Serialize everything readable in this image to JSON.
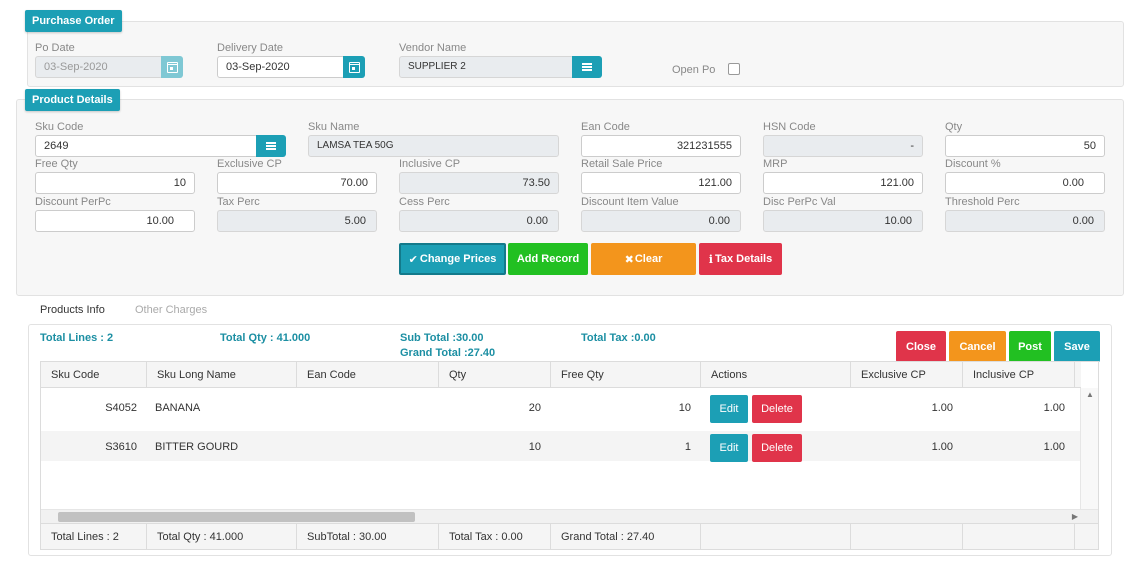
{
  "purchase_order": {
    "title": "Purchase Order",
    "po_date_label": "Po Date",
    "po_date": "03-Sep-2020",
    "delivery_date_label": "Delivery Date",
    "delivery_date": "03-Sep-2020",
    "vendor_label": "Vendor Name",
    "vendor": "SUPPLIER 2",
    "open_po_label": "Open Po"
  },
  "product_details": {
    "title": "Product Details",
    "fields": {
      "sku_code": {
        "label": "Sku Code",
        "value": "2649"
      },
      "sku_name": {
        "label": "Sku Name",
        "value": "LAMSA TEA 50G"
      },
      "ean_code": {
        "label": "Ean Code",
        "value": "321231555"
      },
      "hsn_code": {
        "label": "HSN Code",
        "value": "-"
      },
      "qty": {
        "label": "Qty",
        "value": "50"
      },
      "free_qty": {
        "label": "Free Qty",
        "value": "10"
      },
      "exclusive_cp": {
        "label": "Exclusive CP",
        "value": "70.00"
      },
      "inclusive_cp": {
        "label": "Inclusive CP",
        "value": "73.50"
      },
      "retail_sale_price": {
        "label": "Retail Sale Price",
        "value": "121.00"
      },
      "mrp": {
        "label": "MRP",
        "value": "121.00"
      },
      "discount_pct": {
        "label": "Discount %",
        "value": "0.00"
      },
      "discount_perpc": {
        "label": "Discount PerPc",
        "value": "10.00"
      },
      "tax_perc": {
        "label": "Tax Perc",
        "value": "5.00"
      },
      "cess_perc": {
        "label": "Cess Perc",
        "value": "0.00"
      },
      "discount_item_value": {
        "label": "Discount Item Value",
        "value": "0.00"
      },
      "disc_perpc_val": {
        "label": "Disc PerPc Val",
        "value": "10.00"
      },
      "threshold_perc": {
        "label": "Threshold Perc",
        "value": "0.00"
      }
    },
    "buttons": {
      "change_prices": "Change Prices",
      "add_record": "Add Record",
      "clear": "Clear",
      "tax_details": "Tax Details"
    }
  },
  "tabs": [
    "Products Info",
    "Other Charges"
  ],
  "summary": {
    "total_lines": "Total Lines : 2",
    "total_qty": "Total Qty : 41.000",
    "sub_total": "Sub Total :30.00",
    "grand_total": "Grand Total :27.40",
    "total_tax": "Total Tax :0.00"
  },
  "actions": {
    "close": "Close",
    "cancel": "Cancel",
    "post": "Post",
    "save": "Save"
  },
  "grid": {
    "columns": [
      "Sku Code",
      "Sku Long Name",
      "Ean Code",
      "Qty",
      "Free Qty",
      "Actions",
      "Exclusive CP",
      "Inclusive CP"
    ],
    "rows": [
      {
        "sku_code": "S4052",
        "name": "BANANA",
        "ean": "",
        "qty": "20",
        "free_qty": "10",
        "edit": "Edit",
        "delete": "Delete",
        "excl_cp": "1.00",
        "incl_cp": "1.00"
      },
      {
        "sku_code": "S3610",
        "name": "BITTER GOURD",
        "ean": "",
        "qty": "10",
        "free_qty": "1",
        "edit": "Edit",
        "delete": "Delete",
        "excl_cp": "1.00",
        "incl_cp": "1.00"
      }
    ],
    "footer": [
      "Total Lines : 2",
      "Total Qty : 41.000",
      "SubTotal : 30.00",
      "Total Tax : 0.00",
      "Grand Total : 27.40"
    ]
  },
  "colors": {
    "teal": "#1c9fb5",
    "green": "#22c022",
    "orange": "#f3951c",
    "red": "#e0344a"
  },
  "icons": {
    "calendar": "calendar-icon",
    "menu": "menu-icon",
    "check": "check-icon",
    "close": "x-icon",
    "info": "info-icon"
  }
}
